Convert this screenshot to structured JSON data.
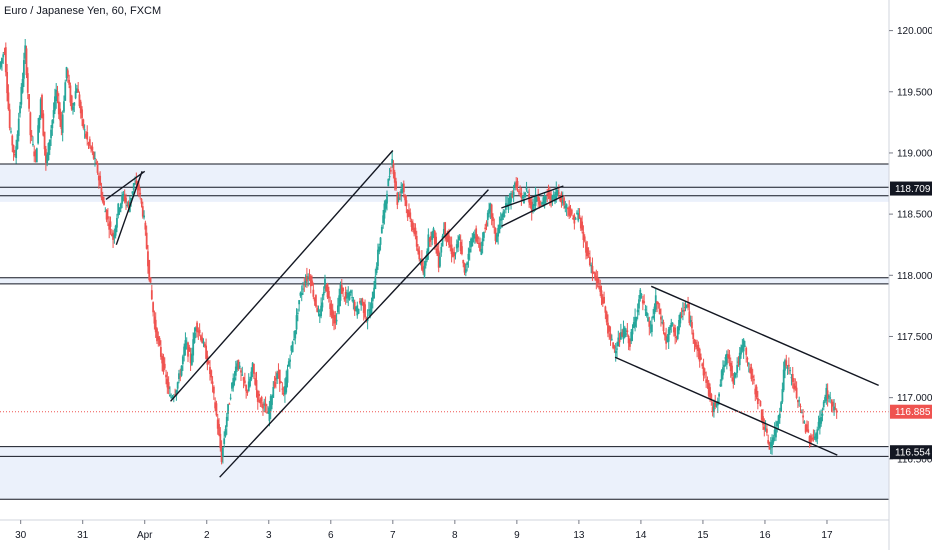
{
  "chart_data": {
    "type": "candlestick",
    "title": "Euro / Japanese Yen, 60, FXCM",
    "xlabel": "",
    "ylabel": "",
    "ylim": [
      116.0,
      120.25
    ],
    "y_ticks": [
      "120.000",
      "119.500",
      "119.000",
      "118.500",
      "118.000",
      "117.500",
      "117.000",
      "116.500"
    ],
    "x_ticks": [
      {
        "label": "30",
        "x": 0
      },
      {
        "label": "31",
        "x": 24
      },
      {
        "label": "Apr",
        "x": 48
      },
      {
        "label": "2",
        "x": 72
      },
      {
        "label": "3",
        "x": 96
      },
      {
        "label": "6",
        "x": 120
      },
      {
        "label": "7",
        "x": 144
      },
      {
        "label": "8",
        "x": 168
      },
      {
        "label": "9",
        "x": 192
      },
      {
        "label": "13",
        "x": 216
      },
      {
        "label": "14",
        "x": 240
      },
      {
        "label": "15",
        "x": 264
      },
      {
        "label": "16",
        "x": 288
      },
      {
        "label": "17",
        "x": 312
      }
    ],
    "x_range": [
      -8,
      336
    ],
    "current_price": {
      "label": "116.885",
      "value": 116.885
    },
    "price_labels": [
      {
        "label": "118.709",
        "value": 118.709
      },
      {
        "label": "116.554",
        "value": 116.554
      }
    ],
    "support_resistance_zones": [
      {
        "top": 118.91,
        "bottom": 118.6
      },
      {
        "top": 117.98,
        "bottom": 117.93
      },
      {
        "top": 116.6,
        "bottom": 116.17
      }
    ],
    "horizontal_lines": [
      118.91,
      118.72,
      118.65,
      117.98,
      117.93,
      116.6,
      116.52,
      116.17
    ],
    "trendlines": [
      {
        "x1": 33,
        "y1": 118.62,
        "x2": 48,
        "y2": 118.85
      },
      {
        "x1": 37,
        "y1": 118.25,
        "x2": 47,
        "y2": 118.85
      },
      {
        "x1": 58,
        "y1": 116.97,
        "x2": 144,
        "y2": 119.02
      },
      {
        "x1": 77,
        "y1": 116.35,
        "x2": 181,
        "y2": 118.7
      },
      {
        "x1": 186,
        "y1": 118.55,
        "x2": 210,
        "y2": 118.73
      },
      {
        "x1": 186,
        "y1": 118.4,
        "x2": 210,
        "y2": 118.65
      },
      {
        "x1": 230,
        "y1": 117.33,
        "x2": 316,
        "y2": 116.53
      },
      {
        "x1": 244,
        "y1": 117.91,
        "x2": 332,
        "y2": 117.1
      }
    ],
    "series": [
      {
        "type": "ohlc-path",
        "points": [
          [
            -8,
            119.7
          ],
          [
            -6,
            119.85
          ],
          [
            -4,
            119.2
          ],
          [
            -2,
            118.95
          ],
          [
            0,
            119.4
          ],
          [
            2,
            119.85
          ],
          [
            4,
            119.15
          ],
          [
            6,
            118.95
          ],
          [
            8,
            119.45
          ],
          [
            10,
            118.9
          ],
          [
            12,
            119.2
          ],
          [
            14,
            119.5
          ],
          [
            16,
            119.2
          ],
          [
            18,
            119.7
          ],
          [
            20,
            119.35
          ],
          [
            22,
            119.55
          ],
          [
            24,
            119.25
          ],
          [
            26,
            119.1
          ],
          [
            28,
            119.0
          ],
          [
            30,
            118.85
          ],
          [
            32,
            118.6
          ],
          [
            34,
            118.45
          ],
          [
            36,
            118.3
          ],
          [
            38,
            118.55
          ],
          [
            40,
            118.65
          ],
          [
            42,
            118.55
          ],
          [
            44,
            118.75
          ],
          [
            46,
            118.7
          ],
          [
            48,
            118.45
          ],
          [
            50,
            118.0
          ],
          [
            52,
            117.6
          ],
          [
            54,
            117.4
          ],
          [
            56,
            117.2
          ],
          [
            58,
            117.0
          ],
          [
            60,
            117.05
          ],
          [
            62,
            117.2
          ],
          [
            64,
            117.45
          ],
          [
            66,
            117.3
          ],
          [
            68,
            117.6
          ],
          [
            70,
            117.5
          ],
          [
            72,
            117.35
          ],
          [
            74,
            117.15
          ],
          [
            76,
            116.85
          ],
          [
            78,
            116.5
          ],
          [
            80,
            116.85
          ],
          [
            82,
            117.1
          ],
          [
            84,
            117.3
          ],
          [
            86,
            117.15
          ],
          [
            88,
            117.05
          ],
          [
            90,
            117.25
          ],
          [
            92,
            117.0
          ],
          [
            94,
            116.95
          ],
          [
            96,
            116.85
          ],
          [
            98,
            117.1
          ],
          [
            100,
            117.2
          ],
          [
            102,
            117.0
          ],
          [
            104,
            117.3
          ],
          [
            106,
            117.5
          ],
          [
            108,
            117.8
          ],
          [
            110,
            117.95
          ],
          [
            112,
            118.0
          ],
          [
            114,
            117.8
          ],
          [
            116,
            117.65
          ],
          [
            118,
            117.95
          ],
          [
            120,
            117.75
          ],
          [
            122,
            117.6
          ],
          [
            124,
            117.9
          ],
          [
            126,
            117.8
          ],
          [
            128,
            117.85
          ],
          [
            130,
            117.7
          ],
          [
            132,
            117.8
          ],
          [
            134,
            117.65
          ],
          [
            136,
            117.75
          ],
          [
            138,
            118.1
          ],
          [
            140,
            118.4
          ],
          [
            142,
            118.7
          ],
          [
            144,
            118.95
          ],
          [
            146,
            118.6
          ],
          [
            148,
            118.75
          ],
          [
            150,
            118.5
          ],
          [
            152,
            118.4
          ],
          [
            154,
            118.2
          ],
          [
            156,
            118.0
          ],
          [
            158,
            118.3
          ],
          [
            160,
            118.35
          ],
          [
            162,
            118.1
          ],
          [
            164,
            118.4
          ],
          [
            166,
            118.25
          ],
          [
            168,
            118.15
          ],
          [
            170,
            118.3
          ],
          [
            172,
            118.0
          ],
          [
            174,
            118.25
          ],
          [
            176,
            118.35
          ],
          [
            178,
            118.2
          ],
          [
            180,
            118.4
          ],
          [
            182,
            118.55
          ],
          [
            184,
            118.3
          ],
          [
            186,
            118.45
          ],
          [
            188,
            118.55
          ],
          [
            190,
            118.65
          ],
          [
            192,
            118.75
          ],
          [
            194,
            118.6
          ],
          [
            196,
            118.7
          ],
          [
            198,
            118.55
          ],
          [
            200,
            118.65
          ],
          [
            202,
            118.58
          ],
          [
            204,
            118.66
          ],
          [
            206,
            118.62
          ],
          [
            208,
            118.7
          ],
          [
            210,
            118.6
          ],
          [
            212,
            118.55
          ],
          [
            214,
            118.45
          ],
          [
            216,
            118.5
          ],
          [
            218,
            118.3
          ],
          [
            220,
            118.15
          ],
          [
            222,
            118.0
          ],
          [
            224,
            117.9
          ],
          [
            226,
            117.75
          ],
          [
            228,
            117.5
          ],
          [
            230,
            117.4
          ],
          [
            232,
            117.48
          ],
          [
            234,
            117.55
          ],
          [
            236,
            117.45
          ],
          [
            238,
            117.65
          ],
          [
            240,
            117.85
          ],
          [
            242,
            117.7
          ],
          [
            244,
            117.55
          ],
          [
            246,
            117.8
          ],
          [
            248,
            117.65
          ],
          [
            250,
            117.45
          ],
          [
            252,
            117.6
          ],
          [
            254,
            117.5
          ],
          [
            256,
            117.7
          ],
          [
            258,
            117.75
          ],
          [
            260,
            117.55
          ],
          [
            262,
            117.4
          ],
          [
            264,
            117.25
          ],
          [
            266,
            117.1
          ],
          [
            268,
            116.9
          ],
          [
            270,
            117.0
          ],
          [
            272,
            117.25
          ],
          [
            274,
            117.35
          ],
          [
            276,
            117.15
          ],
          [
            278,
            117.3
          ],
          [
            280,
            117.45
          ],
          [
            282,
            117.25
          ],
          [
            284,
            117.1
          ],
          [
            286,
            116.95
          ],
          [
            288,
            116.75
          ],
          [
            290,
            116.6
          ],
          [
            292,
            116.7
          ],
          [
            294,
            116.9
          ],
          [
            296,
            117.3
          ],
          [
            298,
            117.2
          ],
          [
            300,
            117.05
          ],
          [
            302,
            116.9
          ],
          [
            304,
            116.75
          ],
          [
            306,
            116.65
          ],
          [
            308,
            116.7
          ],
          [
            310,
            116.85
          ],
          [
            312,
            117.05
          ],
          [
            314,
            116.95
          ],
          [
            316,
            116.88
          ]
        ]
      }
    ]
  }
}
